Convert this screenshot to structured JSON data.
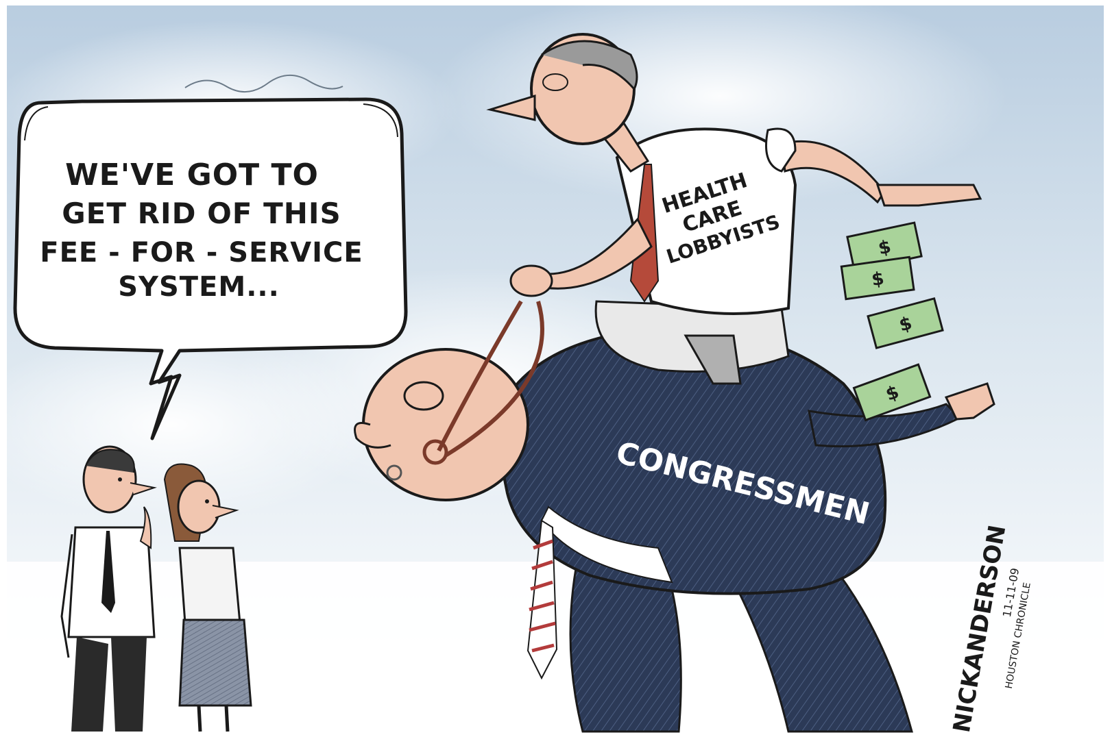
{
  "speech_bubble": {
    "lines": [
      "WE'VE  GOT  TO",
      "GET  RID OF THIS",
      "FEE - FOR - SERVICE",
      "SYSTEM..."
    ]
  },
  "labels": {
    "lobbyist_shirt": [
      "HEALTH",
      "CARE",
      "LOBBYISTS"
    ],
    "congressman_back": "CONGRESSMEN"
  },
  "signature": {
    "artist": "NICKANDERSON",
    "date": "11-11-09",
    "paper": "HOUSTON CHRONICLE"
  },
  "money": {
    "symbol": "$"
  },
  "colors": {
    "sky": "#cfdde9",
    "suit": "#2c3a57",
    "money": "#a9d39a",
    "skin": "#f1c6b0",
    "tie_stripe": "#b33b3b",
    "leash": "#7b3a2a"
  }
}
